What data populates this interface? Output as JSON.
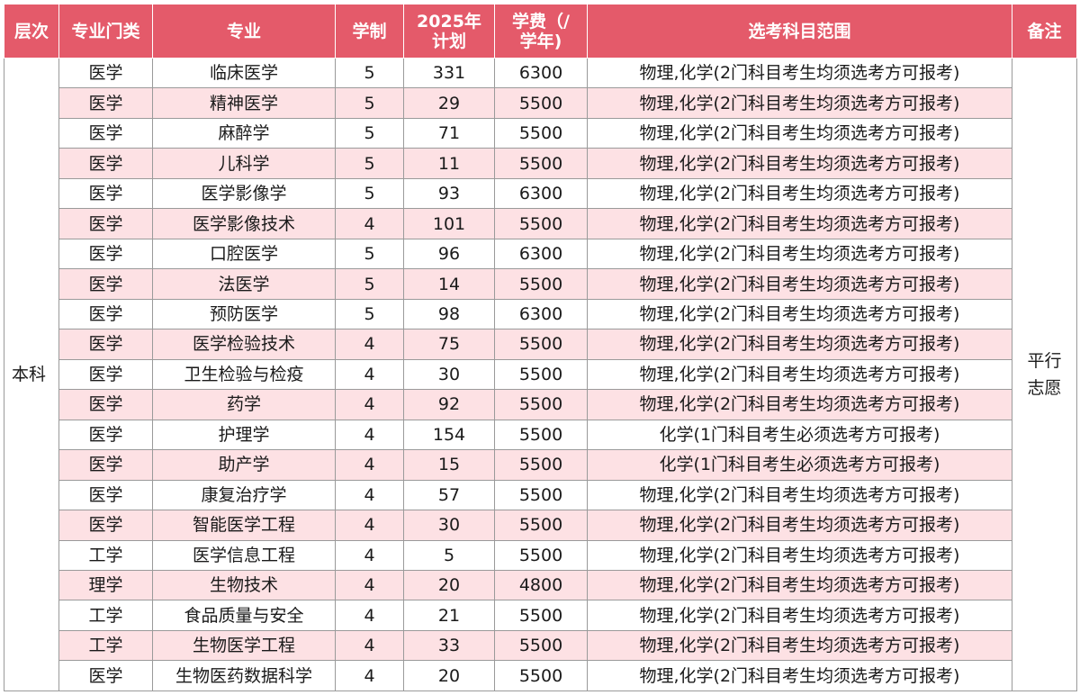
{
  "headers": {
    "level": "层次",
    "category": "专业门类",
    "major": "专业",
    "duration": "学制",
    "plan_line1": "2025年",
    "plan_line2": "计划",
    "fee_line1": "学费（/",
    "fee_line2": "学年)",
    "subjects": "选考科目范围",
    "note": "备注"
  },
  "level": "本科",
  "note_line1": "平行",
  "note_line2": "志愿",
  "rows": [
    {
      "category": "医学",
      "major": "临床医学",
      "duration": "5",
      "plan": "331",
      "fee": "6300",
      "subjects": "物理,化学(2门科目考生均须选考方可报考)"
    },
    {
      "category": "医学",
      "major": "精神医学",
      "duration": "5",
      "plan": "29",
      "fee": "5500",
      "subjects": "物理,化学(2门科目考生均须选考方可报考)"
    },
    {
      "category": "医学",
      "major": "麻醉学",
      "duration": "5",
      "plan": "71",
      "fee": "5500",
      "subjects": "物理,化学(2门科目考生均须选考方可报考)"
    },
    {
      "category": "医学",
      "major": "儿科学",
      "duration": "5",
      "plan": "11",
      "fee": "5500",
      "subjects": "物理,化学(2门科目考生均须选考方可报考)"
    },
    {
      "category": "医学",
      "major": "医学影像学",
      "duration": "5",
      "plan": "93",
      "fee": "6300",
      "subjects": "物理,化学(2门科目考生均须选考方可报考)"
    },
    {
      "category": "医学",
      "major": "医学影像技术",
      "duration": "4",
      "plan": "101",
      "fee": "5500",
      "subjects": "物理,化学(2门科目考生均须选考方可报考)"
    },
    {
      "category": "医学",
      "major": "口腔医学",
      "duration": "5",
      "plan": "96",
      "fee": "6300",
      "subjects": "物理,化学(2门科目考生均须选考方可报考)"
    },
    {
      "category": "医学",
      "major": "法医学",
      "duration": "5",
      "plan": "14",
      "fee": "5500",
      "subjects": "物理,化学(2门科目考生均须选考方可报考)"
    },
    {
      "category": "医学",
      "major": "预防医学",
      "duration": "5",
      "plan": "98",
      "fee": "6300",
      "subjects": "物理,化学(2门科目考生均须选考方可报考)"
    },
    {
      "category": "医学",
      "major": "医学检验技术",
      "duration": "4",
      "plan": "75",
      "fee": "5500",
      "subjects": "物理,化学(2门科目考生均须选考方可报考)"
    },
    {
      "category": "医学",
      "major": "卫生检验与检疫",
      "duration": "4",
      "plan": "30",
      "fee": "5500",
      "subjects": "物理,化学(2门科目考生均须选考方可报考)"
    },
    {
      "category": "医学",
      "major": "药学",
      "duration": "4",
      "plan": "92",
      "fee": "5500",
      "subjects": "物理,化学(2门科目考生均须选考方可报考)"
    },
    {
      "category": "医学",
      "major": "护理学",
      "duration": "4",
      "plan": "154",
      "fee": "5500",
      "subjects": "化学(1门科目考生必须选考方可报考)"
    },
    {
      "category": "医学",
      "major": "助产学",
      "duration": "4",
      "plan": "15",
      "fee": "5500",
      "subjects": "化学(1门科目考生必须选考方可报考)"
    },
    {
      "category": "医学",
      "major": "康复治疗学",
      "duration": "4",
      "plan": "57",
      "fee": "5500",
      "subjects": "物理,化学(2门科目考生均须选考方可报考)"
    },
    {
      "category": "医学",
      "major": "智能医学工程",
      "duration": "4",
      "plan": "30",
      "fee": "5500",
      "subjects": "物理,化学(2门科目考生均须选考方可报考)"
    },
    {
      "category": "工学",
      "major": "医学信息工程",
      "duration": "4",
      "plan": "5",
      "fee": "5500",
      "subjects": "物理,化学(2门科目考生均须选考方可报考)"
    },
    {
      "category": "理学",
      "major": "生物技术",
      "duration": "4",
      "plan": "20",
      "fee": "4800",
      "subjects": "物理,化学(2门科目考生均须选考方可报考)"
    },
    {
      "category": "工学",
      "major": "食品质量与安全",
      "duration": "4",
      "plan": "21",
      "fee": "5500",
      "subjects": "物理,化学(2门科目考生均须选考方可报考)"
    },
    {
      "category": "工学",
      "major": "生物医学工程",
      "duration": "4",
      "plan": "33",
      "fee": "5500",
      "subjects": "物理,化学(2门科目考生均须选考方可报考)"
    },
    {
      "category": "医学",
      "major": "生物医药数据科学",
      "duration": "4",
      "plan": "20",
      "fee": "5500",
      "subjects": "物理,化学(2门科目考生均须选考方可报考)"
    }
  ]
}
